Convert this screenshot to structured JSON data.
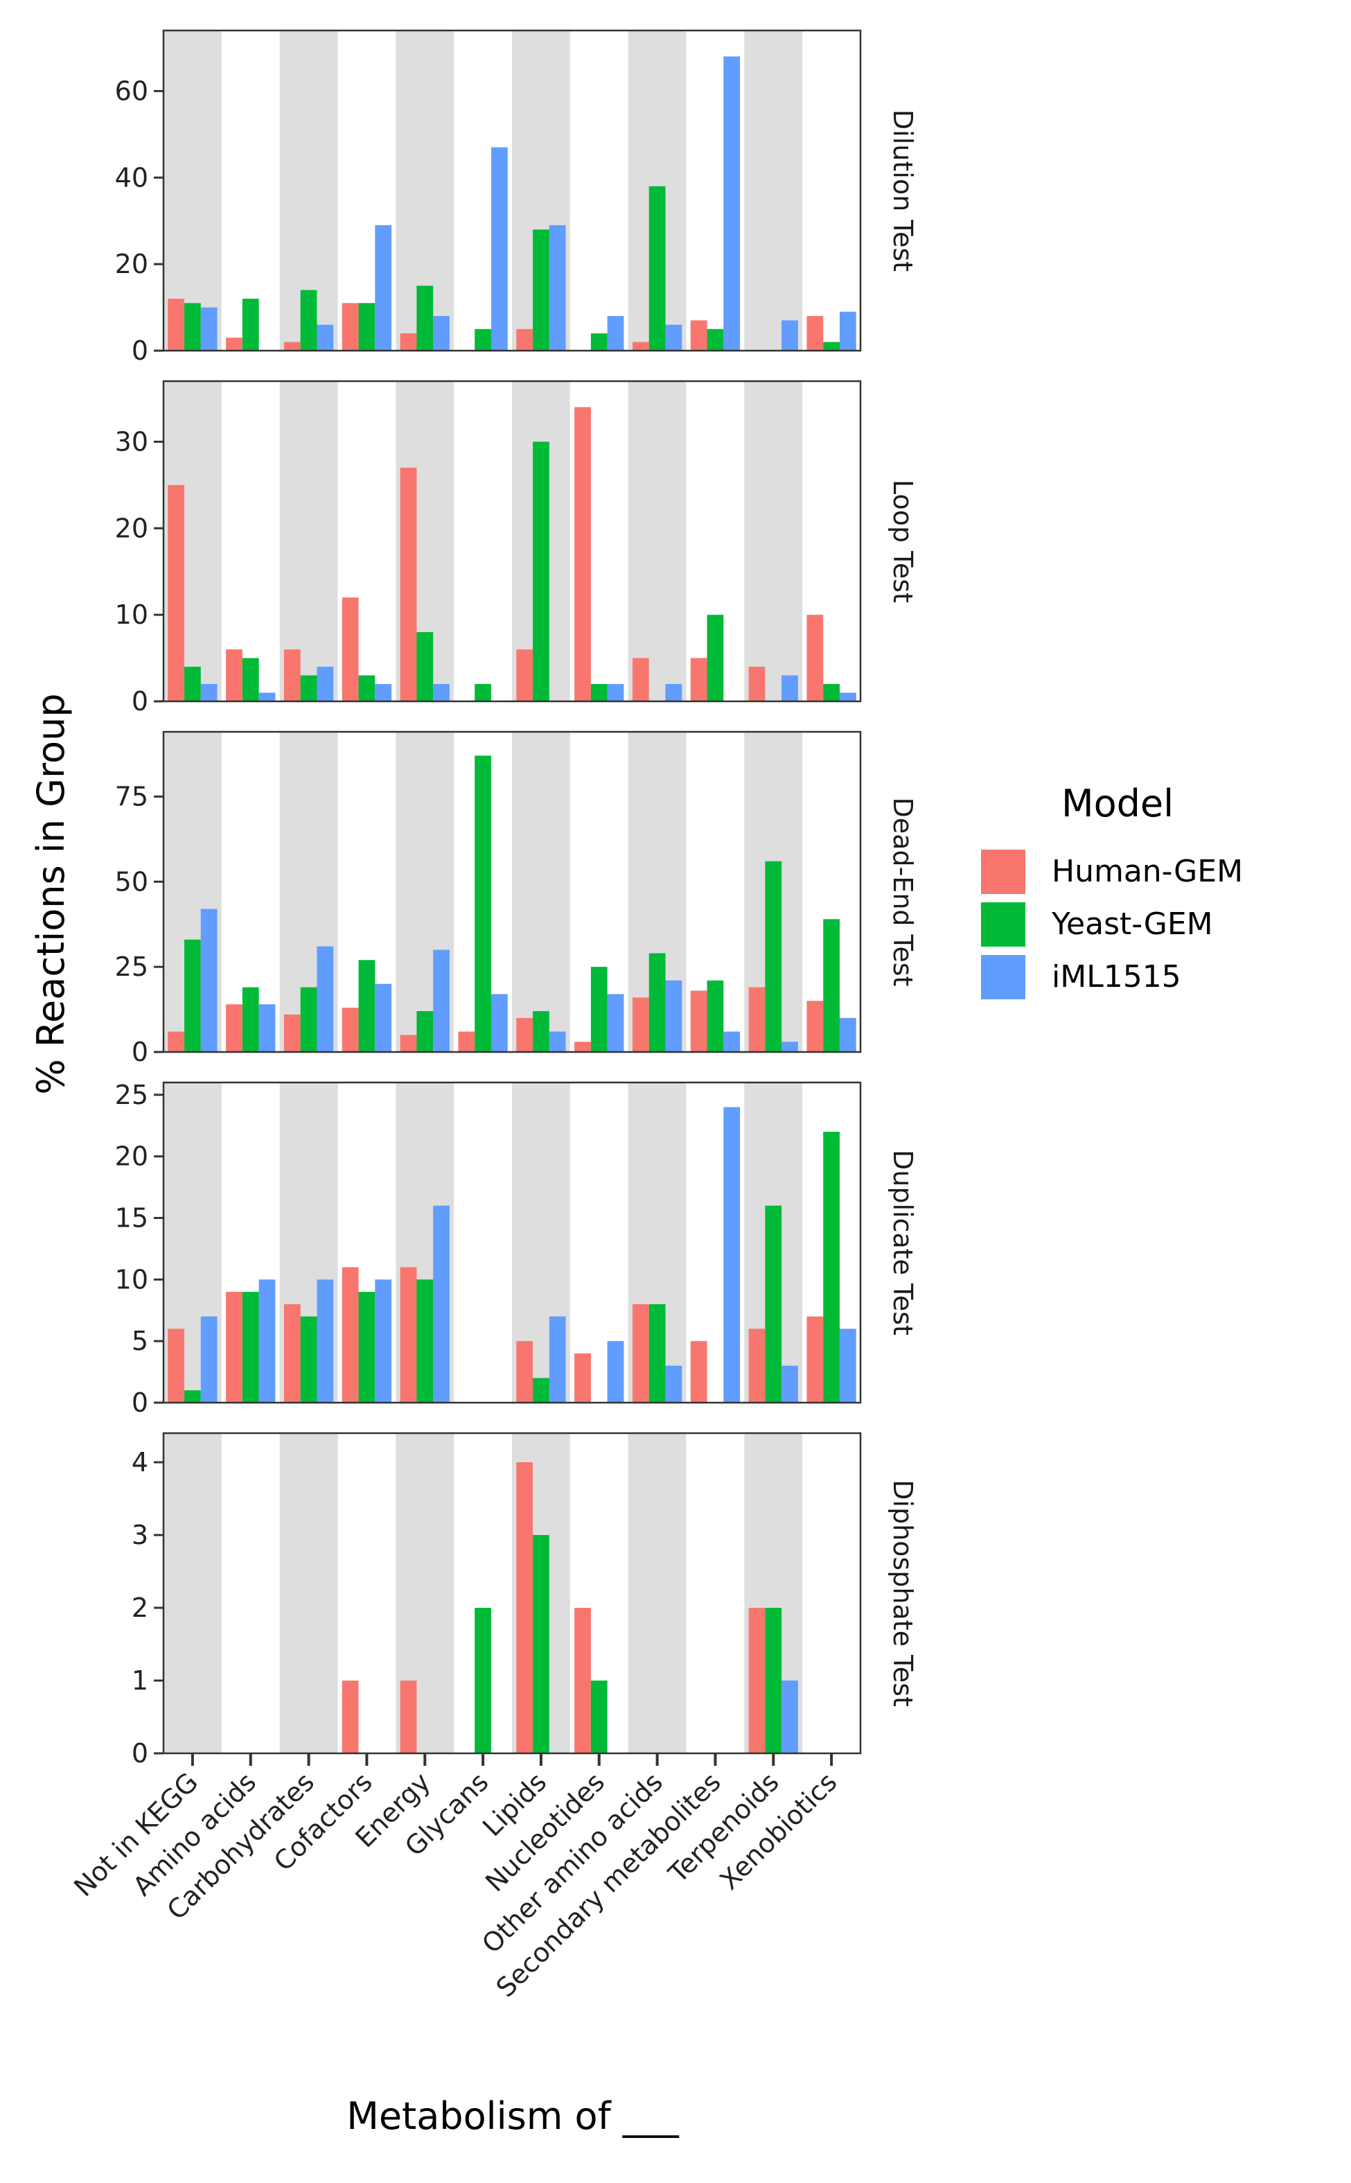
{
  "chart_data": {
    "type": "bar",
    "xlabel": "Metabolism of ___",
    "ylabel": "% Reactions in Group",
    "categories": [
      "Not in KEGG",
      "Amino acids",
      "Carbohydrates",
      "Cofactors",
      "Energy",
      "Glycans",
      "Lipids",
      "Nucleotides",
      "Other amino acids",
      "Secondary metabolites",
      "Terpenoids",
      "Xenobiotics"
    ],
    "legend": {
      "title": "Model",
      "position": "right",
      "items": [
        {
          "label": "Human-GEM",
          "color": "#F8766D"
        },
        {
          "label": "Yeast-GEM",
          "color": "#00BA38"
        },
        {
          "label": "iML1515",
          "color": "#619CFF"
        }
      ]
    },
    "panels": [
      {
        "strip": "Dilution Test",
        "ylim": [
          0,
          74
        ],
        "yticks": [
          0,
          20,
          40,
          60
        ],
        "series": [
          {
            "name": "Human-GEM",
            "values": [
              12,
              3,
              2,
              11,
              4,
              0,
              5,
              0,
              2,
              7,
              0,
              8
            ]
          },
          {
            "name": "Yeast-GEM",
            "values": [
              11,
              12,
              14,
              11,
              15,
              5,
              28,
              4,
              38,
              5,
              0,
              2
            ]
          },
          {
            "name": "iML1515",
            "values": [
              10,
              0,
              6,
              29,
              8,
              47,
              29,
              8,
              6,
              68,
              7,
              9
            ]
          }
        ]
      },
      {
        "strip": "Loop Test",
        "ylim": [
          0,
          37
        ],
        "yticks": [
          0,
          10,
          20,
          30
        ],
        "series": [
          {
            "name": "Human-GEM",
            "values": [
              25,
              6,
              6,
              12,
              27,
              0,
              6,
              34,
              5,
              5,
              4,
              10
            ]
          },
          {
            "name": "Yeast-GEM",
            "values": [
              4,
              5,
              3,
              3,
              8,
              2,
              30,
              2,
              0,
              10,
              0,
              2
            ]
          },
          {
            "name": "iML1515",
            "values": [
              2,
              1,
              4,
              2,
              2,
              0,
              0,
              2,
              2,
              0,
              3,
              1
            ]
          }
        ]
      },
      {
        "strip": "Dead-End Test",
        "ylim": [
          0,
          94
        ],
        "yticks": [
          0,
          25,
          50,
          75
        ],
        "series": [
          {
            "name": "Human-GEM",
            "values": [
              6,
              14,
              11,
              13,
              5,
              6,
              10,
              3,
              16,
              18,
              19,
              15
            ]
          },
          {
            "name": "Yeast-GEM",
            "values": [
              33,
              19,
              19,
              27,
              12,
              87,
              12,
              25,
              29,
              21,
              56,
              39
            ]
          },
          {
            "name": "iML1515",
            "values": [
              42,
              14,
              31,
              20,
              30,
              17,
              6,
              17,
              21,
              6,
              3,
              10
            ]
          }
        ]
      },
      {
        "strip": "Duplicate Test",
        "ylim": [
          0,
          26
        ],
        "yticks": [
          0,
          5,
          10,
          15,
          20,
          25
        ],
        "series": [
          {
            "name": "Human-GEM",
            "values": [
              6,
              9,
              8,
              11,
              11,
              0,
              5,
              4,
              8,
              5,
              6,
              7
            ]
          },
          {
            "name": "Yeast-GEM",
            "values": [
              1,
              9,
              7,
              9,
              10,
              0,
              2,
              0,
              8,
              0,
              16,
              22
            ]
          },
          {
            "name": "iML1515",
            "values": [
              7,
              10,
              10,
              10,
              16,
              0,
              7,
              5,
              3,
              24,
              3,
              6
            ]
          }
        ]
      },
      {
        "strip": "Diphosphate Test",
        "ylim": [
          0,
          4.4
        ],
        "yticks": [
          0,
          1,
          2,
          3,
          4
        ],
        "series": [
          {
            "name": "Human-GEM",
            "values": [
              0,
              0,
              0,
              1,
              1,
              0,
              4,
              2,
              0,
              0,
              2,
              0
            ]
          },
          {
            "name": "Yeast-GEM",
            "values": [
              0,
              0,
              0,
              0,
              0,
              2,
              3,
              1,
              0,
              0,
              2,
              0
            ]
          },
          {
            "name": "iML1515",
            "values": [
              0,
              0,
              0,
              0,
              0,
              0,
              0,
              0,
              0,
              0,
              1,
              0
            ]
          }
        ]
      }
    ],
    "background_bands": {
      "color": "#DEDEDE",
      "every_other_category_from": 0
    }
  }
}
